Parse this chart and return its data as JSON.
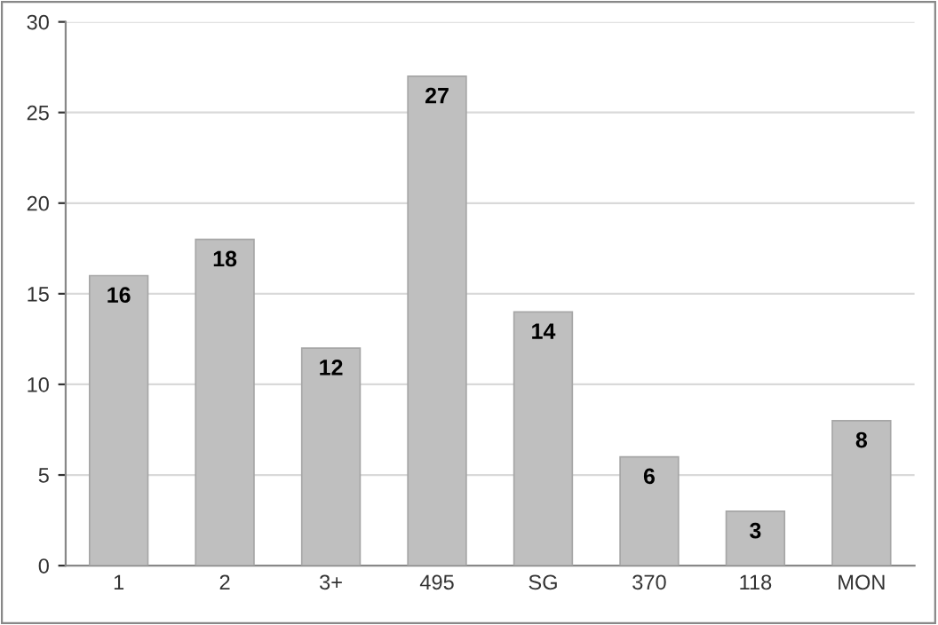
{
  "chart_data": {
    "type": "bar",
    "categories": [
      "1",
      "2",
      "3+",
      "495",
      "SG",
      "370",
      "118",
      "MON"
    ],
    "values": [
      16,
      18,
      12,
      27,
      14,
      6,
      3,
      8
    ],
    "color": "#bfbfbf",
    "ylim": [
      0,
      30
    ],
    "yticks": [
      0,
      5,
      10,
      15,
      20,
      25,
      30
    ],
    "grid": "y",
    "data_labels": true
  }
}
